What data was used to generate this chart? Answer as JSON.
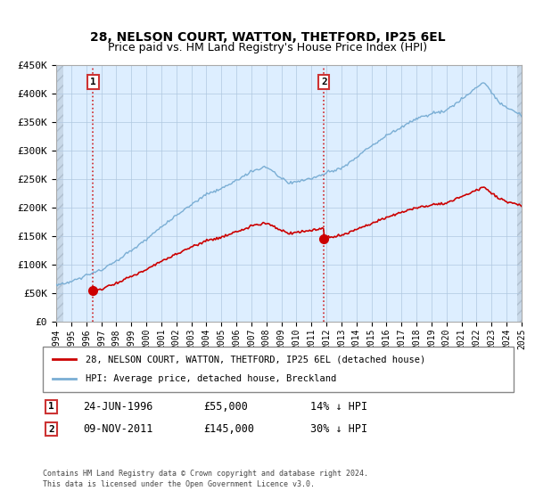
{
  "title": "28, NELSON COURT, WATTON, THETFORD, IP25 6EL",
  "subtitle": "Price paid vs. HM Land Registry's House Price Index (HPI)",
  "ylim": [
    0,
    450000
  ],
  "yticks": [
    0,
    50000,
    100000,
    150000,
    200000,
    250000,
    300000,
    350000,
    400000,
    450000
  ],
  "ytick_labels": [
    "£0",
    "£50K",
    "£100K",
    "£150K",
    "£200K",
    "£250K",
    "£300K",
    "£350K",
    "£400K",
    "£450K"
  ],
  "sale1_year": 1996.458,
  "sale1_price": 55000,
  "sale2_year": 2011.833,
  "sale2_price": 145000,
  "sale1_date_str": "24-JUN-1996",
  "sale1_price_str": "£55,000",
  "sale1_pct_str": "14% ↓ HPI",
  "sale2_date_str": "09-NOV-2011",
  "sale2_price_str": "£145,000",
  "sale2_pct_str": "30% ↓ HPI",
  "hpi_color": "#7aaed4",
  "price_color": "#cc0000",
  "vline_color": "#cc0000",
  "plot_bg_color": "#ddeeff",
  "grid_color": "#b0c8e0",
  "legend_label_price": "28, NELSON COURT, WATTON, THETFORD, IP25 6EL (detached house)",
  "legend_label_hpi": "HPI: Average price, detached house, Breckland",
  "footer": "Contains HM Land Registry data © Crown copyright and database right 2024.\nThis data is licensed under the Open Government Licence v3.0.",
  "xstart": 1994,
  "xend": 2025
}
